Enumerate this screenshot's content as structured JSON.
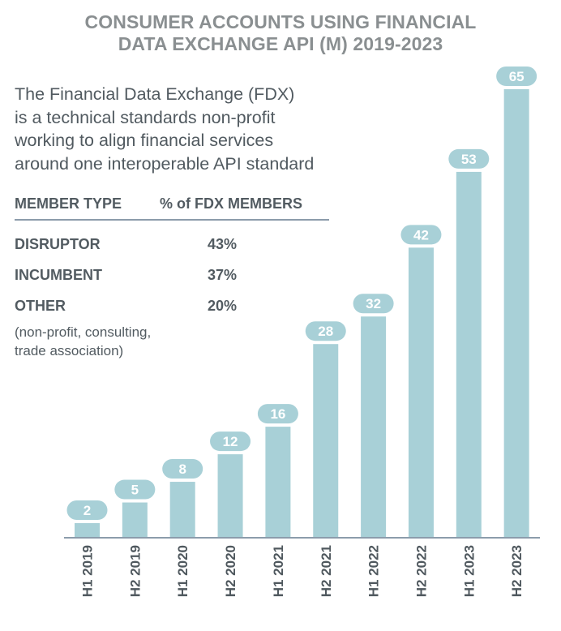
{
  "title": {
    "line1": "CONSUMER ACCOUNTS USING FINANCIAL",
    "line2": "DATA EXCHANGE API (M) 2019-2023"
  },
  "intro": {
    "lines": [
      "The Financial Data Exchange (FDX)",
      "is a technical standards non-profit",
      "working to align financial services",
      "around one interoperable API standard"
    ]
  },
  "member_table": {
    "headers": [
      "MEMBER TYPE",
      "% of FDX MEMBERS"
    ],
    "rows": [
      {
        "type": "DISRUPTOR",
        "percent": "43%"
      },
      {
        "type": "INCUMBENT",
        "percent": "37%"
      },
      {
        "type": "OTHER",
        "percent": "20%"
      }
    ],
    "note_lines": [
      "(non-profit, consulting,",
      "trade association)"
    ]
  },
  "colors": {
    "bar": "#a8d0d7",
    "label_pill": "#a8d0d7",
    "title": "#8a8f91",
    "text": "#525b61",
    "axis": "#8c9cab"
  },
  "chart_data": {
    "type": "bar",
    "title": "CONSUMER ACCOUNTS USING FINANCIAL DATA EXCHANGE API (M) 2019-2023",
    "categories": [
      "H1 2019",
      "H2 2019",
      "H1 2020",
      "H2 2020",
      "H1 2021",
      "H2 2021",
      "H1 2022",
      "H2 2022",
      "H1 2023",
      "H2 2023"
    ],
    "values": [
      2,
      5,
      8,
      12,
      16,
      28,
      32,
      42,
      53,
      65
    ],
    "xlabel": "",
    "ylabel": "",
    "ylim": [
      0,
      65
    ],
    "grid": false,
    "data_labels": true
  }
}
